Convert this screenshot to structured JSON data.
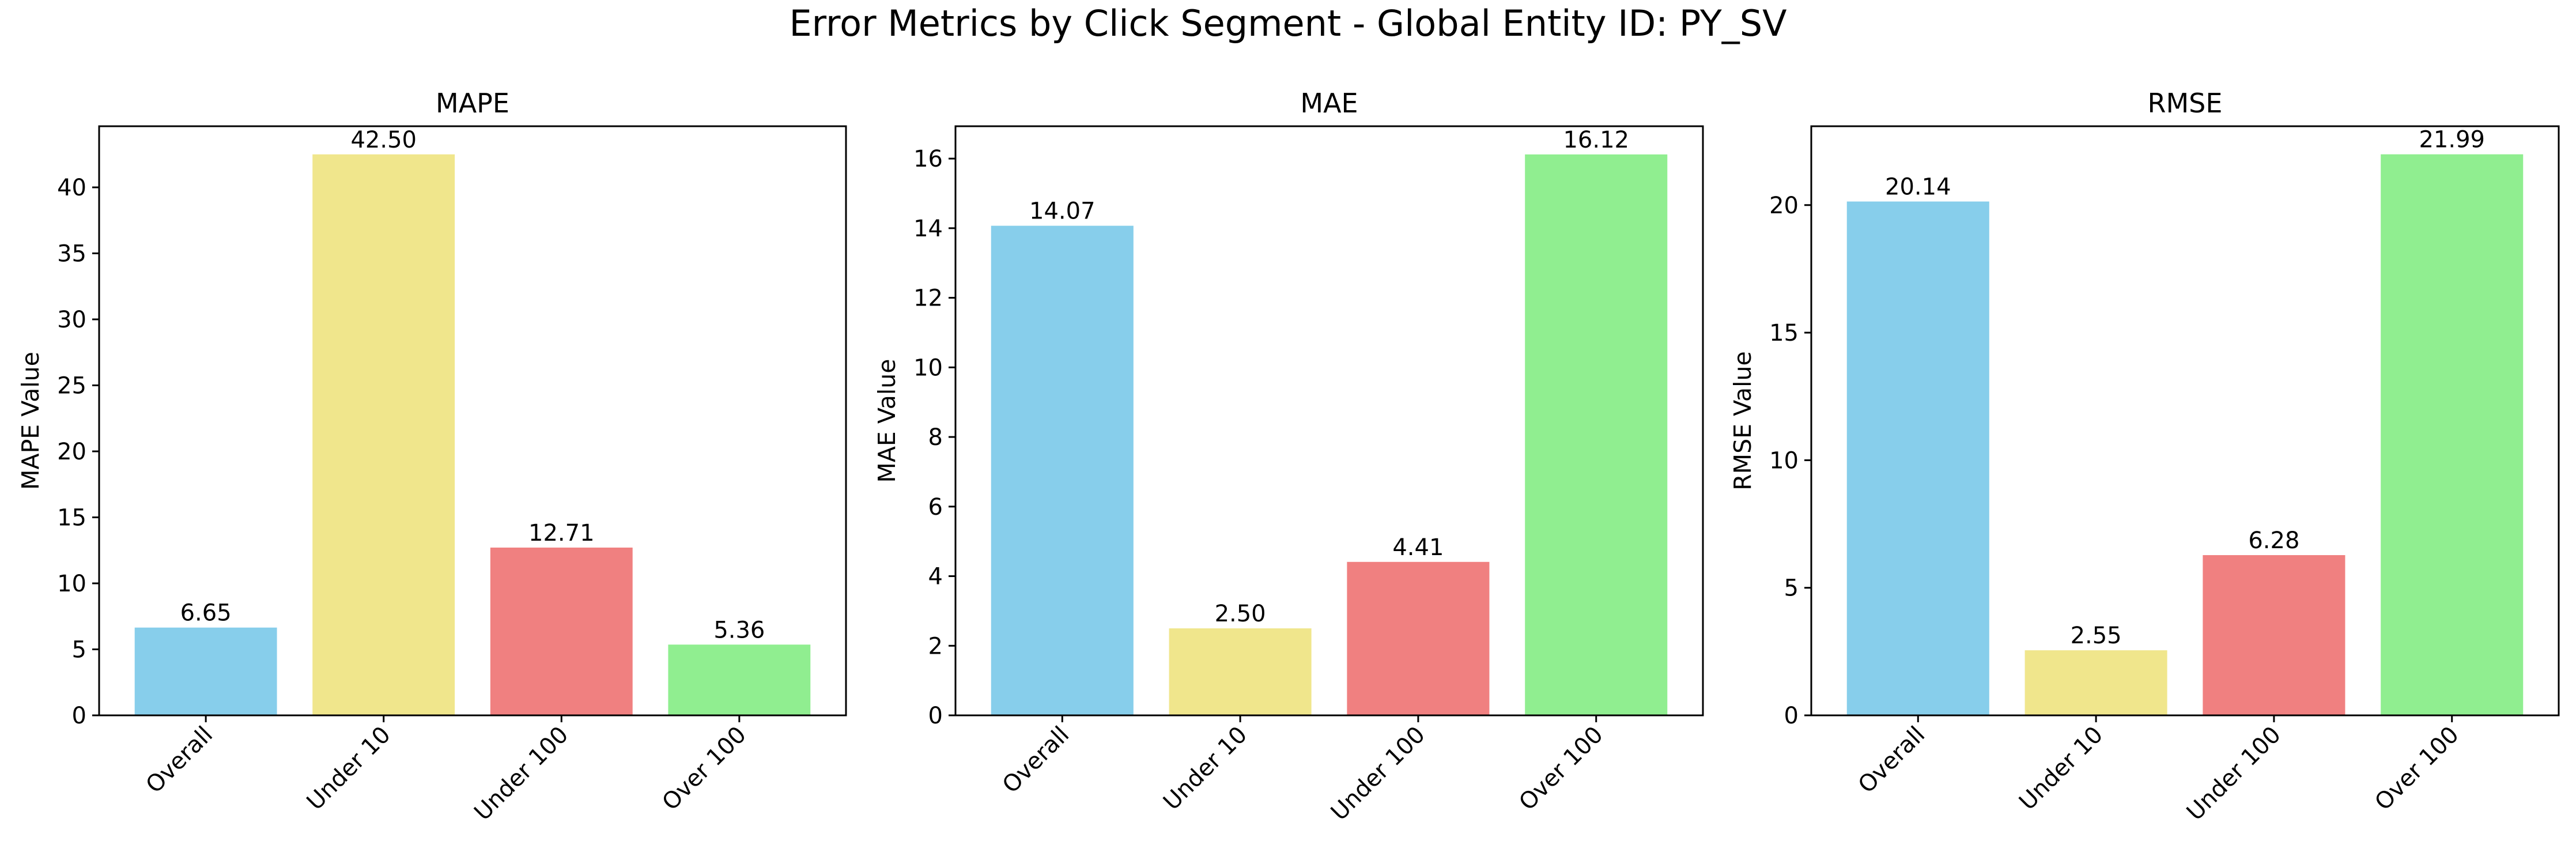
{
  "figure": {
    "title": "Error Metrics by Click Segment - Global Entity ID: PY_SV"
  },
  "chart_data": [
    {
      "type": "bar",
      "title": "MAPE",
      "xlabel": "",
      "ylabel": "MAPE Value",
      "categories": [
        "Overall",
        "Under 10",
        "Under 100",
        "Over 100"
      ],
      "values": [
        6.65,
        42.5,
        12.71,
        5.36
      ],
      "value_labels": [
        "6.65",
        "42.50",
        "12.71",
        "5.36"
      ],
      "colors": [
        "#87CEEB",
        "#F0E68C",
        "#F08080",
        "#90EE90"
      ],
      "ylim": [
        0,
        44.63
      ],
      "yticks": [
        0,
        5,
        10,
        15,
        20,
        25,
        30,
        35,
        40
      ],
      "grid": false,
      "legend": "none"
    },
    {
      "type": "bar",
      "title": "MAE",
      "xlabel": "",
      "ylabel": "MAE Value",
      "categories": [
        "Overall",
        "Under 10",
        "Under 100",
        "Over 100"
      ],
      "values": [
        14.07,
        2.5,
        4.41,
        16.12
      ],
      "value_labels": [
        "14.07",
        "2.50",
        "4.41",
        "16.12"
      ],
      "colors": [
        "#87CEEB",
        "#F0E68C",
        "#F08080",
        "#90EE90"
      ],
      "ylim": [
        0,
        16.93
      ],
      "yticks": [
        0,
        2,
        4,
        6,
        8,
        10,
        12,
        14,
        16
      ],
      "grid": false,
      "legend": "none"
    },
    {
      "type": "bar",
      "title": "RMSE",
      "xlabel": "",
      "ylabel": "RMSE Value",
      "categories": [
        "Overall",
        "Under 10",
        "Under 100",
        "Over 100"
      ],
      "values": [
        20.14,
        2.55,
        6.28,
        21.99
      ],
      "value_labels": [
        "20.14",
        "2.55",
        "6.28",
        "21.99"
      ],
      "colors": [
        "#87CEEB",
        "#F0E68C",
        "#F08080",
        "#90EE90"
      ],
      "ylim": [
        0,
        23.09
      ],
      "yticks": [
        0,
        5,
        10,
        15,
        20
      ],
      "grid": false,
      "legend": "none"
    }
  ]
}
